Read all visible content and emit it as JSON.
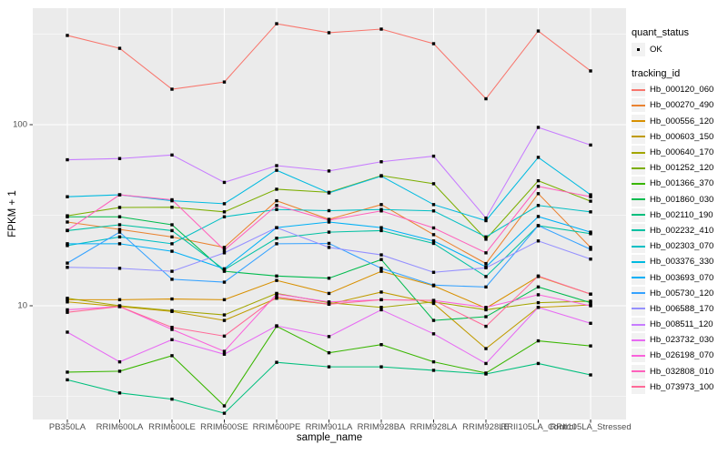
{
  "figure": {
    "y_axis_title": "FPKM + 1",
    "x_axis_title": "sample_name",
    "colors": {
      "panel_bg": "#EBEBEB",
      "grid": "#FFFFFF",
      "marker": "#000000",
      "axis_text": "#4D4D4D",
      "tick_mark": "#333333",
      "legend_key_bg": "#F2F2F2"
    }
  },
  "legend": {
    "quant_status_title": "quant_status",
    "quant_status_items": [
      {
        "label": "OK"
      }
    ],
    "tracking_title": "tracking_id"
  },
  "chart_data": {
    "type": "line",
    "title": "",
    "xlabel": "sample_name",
    "ylabel": "FPKM + 1",
    "y_scale": "log10",
    "grid": true,
    "legend_position": "right",
    "marker": "small-black-square",
    "quant_status": "OK",
    "y_ticks": [
      {
        "label": "100",
        "value": 100
      },
      {
        "label": "10",
        "value": 10
      }
    ],
    "y_minor_gridline_values": [
      3.162,
      31.62,
      316.2
    ],
    "ylim_log_range": [
      2.4,
      440
    ],
    "categories": [
      "PB350LA",
      "RRIM600LA",
      "RRIM600LE",
      "RRIM600SE",
      "RRIM600PE",
      "RRIM901LA",
      "RRIM928BA",
      "RRIM928LA",
      "RRIM928LE",
      "RRII105LA_Control",
      "RRII105LA_Stressed"
    ],
    "series": [
      {
        "name": "Hb_000120_060",
        "color": "#F8766D",
        "values": [
          311,
          264,
          157,
          172,
          361,
          322,
          337,
          280,
          139,
          329,
          198
        ]
      },
      {
        "name": "Hb_000270_490",
        "color": "#EA8331",
        "values": [
          29,
          26.4,
          24,
          21,
          38,
          30,
          36.2,
          24.7,
          17.1,
          41.6,
          21
        ]
      },
      {
        "name": "Hb_000556_120",
        "color": "#D89000",
        "values": [
          10.8,
          10.8,
          10.9,
          10.8,
          13.8,
          11.7,
          15.5,
          12.9,
          9.7,
          14.5,
          11.6
        ]
      },
      {
        "name": "Hb_000603_150",
        "color": "#C09B00",
        "values": [
          10.5,
          9.9,
          9.3,
          8.3,
          11.0,
          10.2,
          11.9,
          10.3,
          5.8,
          9.8,
          10.1
        ]
      },
      {
        "name": "Hb_000640_170",
        "color": "#A3A500",
        "values": [
          11.0,
          10.0,
          9.4,
          8.9,
          11.7,
          10.4,
          9.8,
          10.5,
          9.5,
          10.4,
          10.6
        ]
      },
      {
        "name": "Hb_001252_120",
        "color": "#7CAE00",
        "values": [
          31.4,
          34.9,
          35,
          33,
          44,
          42.3,
          52.3,
          47.2,
          23.3,
          49,
          37.8
        ]
      },
      {
        "name": "Hb_001366_370",
        "color": "#39B600",
        "values": [
          4.3,
          4.35,
          5.3,
          2.8,
          7.7,
          5.5,
          6.1,
          4.9,
          4.25,
          6.4,
          6.0
        ]
      },
      {
        "name": "Hb_001860_030",
        "color": "#00BB4E",
        "values": [
          31,
          31,
          28,
          15.5,
          14.6,
          14.2,
          18,
          8.3,
          8.7,
          12.7,
          10.4
        ]
      },
      {
        "name": "Hb_002110_190",
        "color": "#00BF7D",
        "values": [
          3.9,
          3.3,
          3.05,
          2.55,
          4.87,
          4.6,
          4.6,
          4.4,
          4.2,
          4.8,
          4.15
        ]
      },
      {
        "name": "Hb_002232_410",
        "color": "#00C1A3",
        "values": [
          26,
          28,
          26,
          15.8,
          23.6,
          25.5,
          26,
          22.1,
          14.5,
          27.7,
          25
        ]
      },
      {
        "name": "Hb_002303_070",
        "color": "#00BFC4",
        "values": [
          21.5,
          24,
          22,
          31,
          34,
          33.5,
          34,
          33.4,
          24,
          35.8,
          33
        ]
      },
      {
        "name": "Hb_003376_330",
        "color": "#00BAE0",
        "values": [
          40,
          41,
          38,
          36.6,
          56,
          42,
          52,
          36.2,
          29.5,
          66,
          41
        ]
      },
      {
        "name": "Hb_003693_070",
        "color": "#00B0F6",
        "values": [
          22,
          22,
          20,
          16,
          27,
          29,
          27,
          22.8,
          16.4,
          31.1,
          25.5
        ]
      },
      {
        "name": "Hb_005730_120",
        "color": "#35A2FF",
        "values": [
          17.2,
          25.5,
          14,
          13.5,
          22,
          22.1,
          16.1,
          13.0,
          12.7,
          27.7,
          20.5
        ]
      },
      {
        "name": "Hb_006588_170",
        "color": "#9590FF",
        "values": [
          16.3,
          16.1,
          15.5,
          19.6,
          27,
          21,
          19.1,
          15.3,
          16.2,
          22.8,
          18.1
        ]
      },
      {
        "name": "Hb_008511_120",
        "color": "#C77CFF",
        "values": [
          64,
          65,
          68,
          48,
          59.4,
          55.5,
          62.4,
          67,
          30.5,
          96.6,
          77.2
        ]
      },
      {
        "name": "Hb_023732_030",
        "color": "#E76BF3",
        "values": [
          7.15,
          4.9,
          6.5,
          5.4,
          7.75,
          6.76,
          9.5,
          7.0,
          4.8,
          9.8,
          8.0
        ]
      },
      {
        "name": "Hb_026198_070",
        "color": "#FA62DB",
        "values": [
          9.5,
          9.9,
          7.4,
          5.6,
          11.6,
          10.5,
          10.8,
          10.7,
          9.8,
          11.5,
          10.0
        ]
      },
      {
        "name": "Hb_032808_010",
        "color": "#FF62BC",
        "values": [
          26.1,
          41,
          38.5,
          20.3,
          35.8,
          29.7,
          33.4,
          26.9,
          19.6,
          45.6,
          40
        ]
      },
      {
        "name": "Hb_073973_100",
        "color": "#FF6A98",
        "values": [
          9.2,
          9.9,
          7.6,
          6.8,
          11.2,
          10.2,
          10.8,
          10.7,
          7.7,
          14.6,
          11.6
        ]
      }
    ]
  }
}
